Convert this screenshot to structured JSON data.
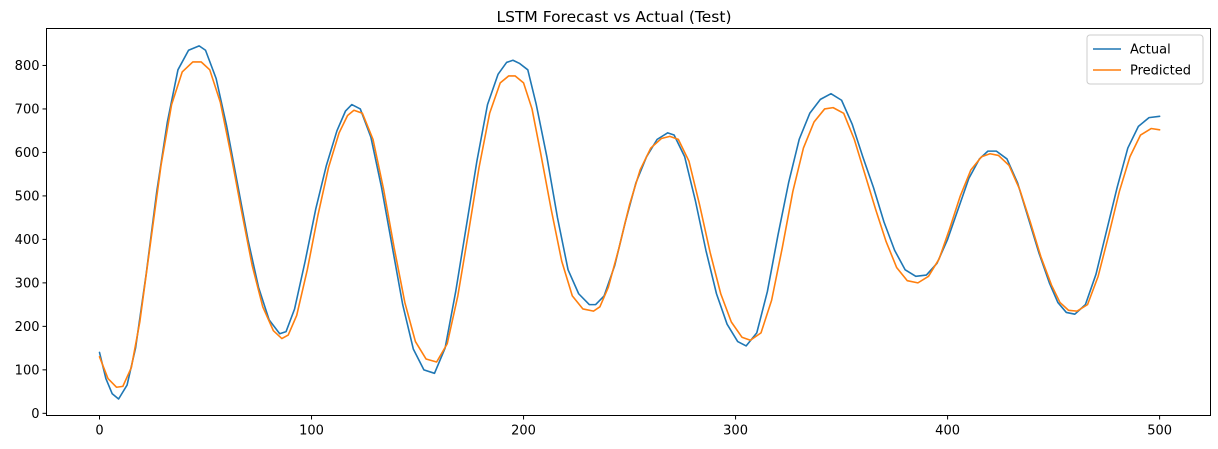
{
  "chart_data": {
    "type": "line",
    "title": "LSTM Forecast vs Actual (Test)",
    "xlabel": "",
    "ylabel": "",
    "xlim": [
      -25,
      524
    ],
    "ylim": [
      -5,
      885
    ],
    "x_ticks": [
      0,
      100,
      200,
      300,
      400,
      500
    ],
    "y_ticks": [
      0,
      100,
      200,
      300,
      400,
      500,
      600,
      700,
      800
    ],
    "grid": false,
    "legend_position": "top-right",
    "series": [
      {
        "name": "Actual",
        "color": "#1f77b4",
        "x": [
          0,
          3,
          6,
          9,
          13,
          17,
          22,
          27,
          32,
          37,
          42,
          47,
          50,
          55,
          60,
          65,
          70,
          75,
          80,
          85,
          88,
          92,
          97,
          102,
          107,
          112,
          116,
          119,
          123,
          128,
          133,
          138,
          143,
          148,
          153,
          158,
          163,
          168,
          173,
          178,
          183,
          188,
          192,
          195,
          198,
          202,
          206,
          211,
          216,
          221,
          226,
          231,
          234,
          238,
          243,
          248,
          253,
          258,
          263,
          268,
          271,
          276,
          281,
          286,
          291,
          296,
          301,
          305,
          310,
          315,
          320,
          325,
          330,
          335,
          340,
          345,
          350,
          355,
          360,
          365,
          370,
          375,
          380,
          385,
          390,
          395,
          400,
          405,
          410,
          415,
          419,
          423,
          428,
          433,
          438,
          443,
          448,
          452,
          456,
          460,
          465,
          470,
          475,
          480,
          485,
          490,
          495,
          500
        ],
        "y": [
          140,
          80,
          45,
          33,
          65,
          150,
          320,
          510,
          670,
          790,
          835,
          845,
          835,
          770,
          660,
          530,
          400,
          290,
          215,
          183,
          188,
          240,
          350,
          470,
          570,
          650,
          695,
          710,
          700,
          635,
          520,
          385,
          250,
          148,
          100,
          92,
          150,
          280,
          430,
          580,
          710,
          780,
          807,
          812,
          805,
          790,
          710,
          590,
          450,
          330,
          275,
          250,
          250,
          270,
          340,
          440,
          530,
          590,
          630,
          645,
          640,
          590,
          490,
          375,
          275,
          205,
          165,
          155,
          185,
          280,
          410,
          530,
          630,
          690,
          722,
          735,
          720,
          665,
          590,
          520,
          440,
          375,
          330,
          315,
          318,
          345,
          400,
          470,
          540,
          585,
          603,
          603,
          585,
          530,
          450,
          370,
          300,
          255,
          232,
          228,
          250,
          320,
          420,
          520,
          610,
          660,
          680,
          683
        ]
      },
      {
        "name": "Predicted",
        "color": "#ff7f0e",
        "x": [
          0,
          4,
          8,
          11,
          15,
          19,
          24,
          29,
          34,
          39,
          44,
          48,
          52,
          57,
          62,
          67,
          72,
          77,
          82,
          86,
          89,
          93,
          98,
          103,
          108,
          113,
          117,
          120,
          124,
          129,
          134,
          139,
          144,
          149,
          154,
          159,
          164,
          169,
          174,
          179,
          184,
          189,
          193,
          196,
          200,
          204,
          208,
          213,
          218,
          223,
          228,
          233,
          236,
          240,
          245,
          250,
          255,
          260,
          265,
          269,
          273,
          278,
          283,
          288,
          293,
          298,
          303,
          307,
          312,
          317,
          322,
          327,
          332,
          337,
          342,
          346,
          351,
          356,
          361,
          366,
          371,
          376,
          381,
          386,
          391,
          396,
          401,
          406,
          411,
          416,
          420,
          424,
          429,
          434,
          439,
          444,
          449,
          453,
          457,
          461,
          466,
          471,
          476,
          481,
          486,
          491,
          496,
          500
        ],
        "y": [
          130,
          80,
          60,
          62,
          105,
          210,
          390,
          570,
          710,
          785,
          808,
          808,
          790,
          715,
          595,
          465,
          340,
          245,
          190,
          172,
          180,
          225,
          330,
          455,
          565,
          645,
          685,
          697,
          690,
          630,
          515,
          380,
          255,
          165,
          125,
          118,
          160,
          270,
          415,
          565,
          690,
          760,
          776,
          776,
          760,
          700,
          600,
          470,
          350,
          270,
          240,
          235,
          245,
          290,
          380,
          480,
          560,
          610,
          632,
          637,
          630,
          580,
          480,
          370,
          275,
          210,
          175,
          168,
          185,
          260,
          380,
          510,
          610,
          670,
          700,
          703,
          690,
          630,
          550,
          470,
          395,
          335,
          305,
          300,
          315,
          355,
          425,
          500,
          560,
          590,
          597,
          593,
          570,
          515,
          440,
          360,
          295,
          255,
          237,
          235,
          250,
          315,
          410,
          510,
          590,
          640,
          655,
          652
        ]
      }
    ]
  }
}
